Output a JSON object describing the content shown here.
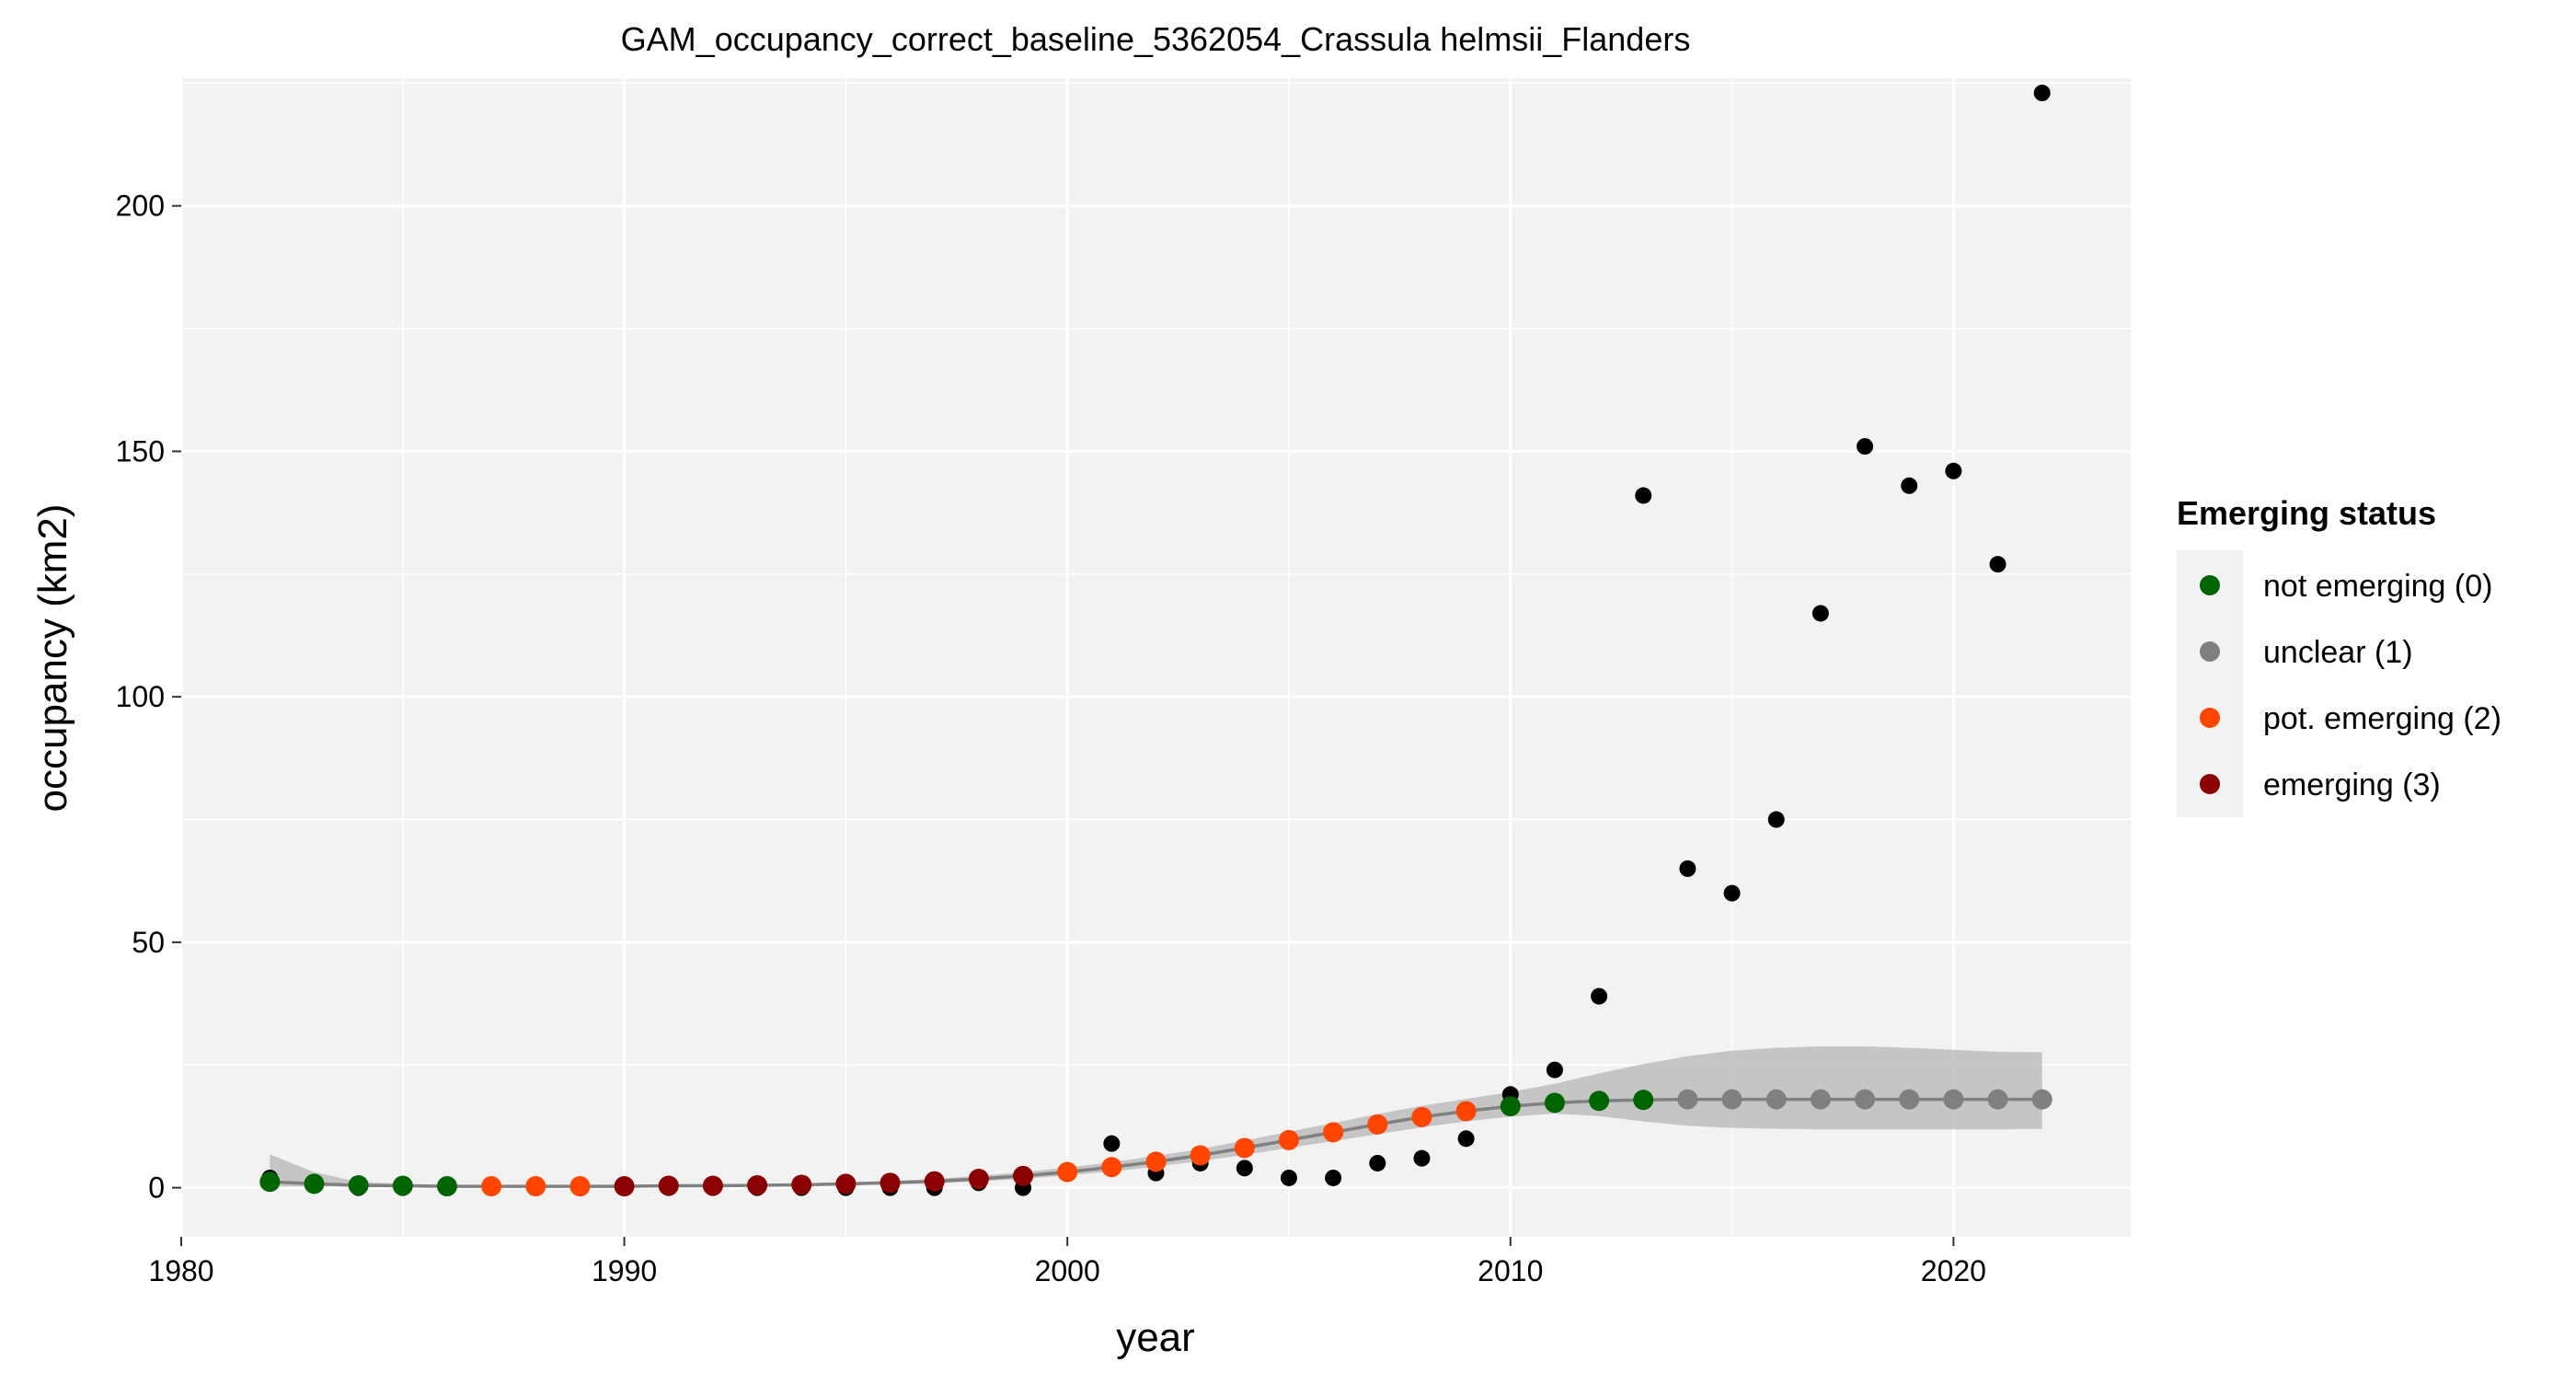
{
  "chart_data": {
    "type": "scatter",
    "title": "GAM_occupancy_correct_baseline_5362054_Crassula helmsii_Flanders",
    "xlabel": "year",
    "ylabel": "occupancy (km2)",
    "xlim": [
      1980,
      2024
    ],
    "ylim": [
      -10,
      226
    ],
    "x_ticks": [
      1980,
      1990,
      2000,
      2010,
      2020
    ],
    "y_ticks": [
      0,
      50,
      100,
      150,
      200
    ],
    "grid": true,
    "legend_position": "right",
    "legend": {
      "title": "Emerging status",
      "entries": [
        {
          "label": "not emerging (0)",
          "color": "#006400"
        },
        {
          "label": "unclear (1)",
          "color": "#808080"
        },
        {
          "label": "pot. emerging (2)",
          "color": "#FF4500"
        },
        {
          "label": "emerging (3)",
          "color": "#8B0000"
        }
      ]
    },
    "observed": {
      "color": "#000000",
      "x": [
        1982,
        1983,
        1984,
        1985,
        1986,
        1987,
        1988,
        1989,
        1990,
        1991,
        1992,
        1993,
        1994,
        1995,
        1996,
        1997,
        1998,
        1999,
        2000,
        2001,
        2002,
        2003,
        2004,
        2005,
        2006,
        2007,
        2008,
        2009,
        2010,
        2011,
        2012,
        2013,
        2014,
        2015,
        2016,
        2017,
        2018,
        2019,
        2020,
        2021,
        2022
      ],
      "y": [
        2,
        1,
        0,
        0,
        0,
        0,
        0,
        0,
        0,
        0,
        0,
        0,
        0,
        0,
        0,
        0,
        1,
        0,
        3,
        9,
        3,
        5,
        4,
        2,
        2,
        5,
        6,
        10,
        19,
        24,
        39,
        141,
        65,
        60,
        75,
        117,
        151,
        143,
        146,
        127,
        223
      ]
    },
    "fitted": {
      "line_color": "#808080",
      "ribbon_color": "#BDBDBD",
      "x": [
        1982,
        1983,
        1984,
        1985,
        1986,
        1987,
        1988,
        1989,
        1990,
        1991,
        1992,
        1993,
        1994,
        1995,
        1996,
        1997,
        1998,
        1999,
        2000,
        2001,
        2002,
        2003,
        2004,
        2005,
        2006,
        2007,
        2008,
        2009,
        2010,
        2011,
        2012,
        2013,
        2014,
        2015,
        2016,
        2017,
        2018,
        2019,
        2020,
        2021,
        2022
      ],
      "y": [
        1.2,
        0.8,
        0.5,
        0.4,
        0.3,
        0.3,
        0.3,
        0.3,
        0.3,
        0.4,
        0.4,
        0.5,
        0.6,
        0.8,
        1.0,
        1.3,
        1.8,
        2.4,
        3.2,
        4.2,
        5.3,
        6.6,
        8.1,
        9.7,
        11.3,
        12.9,
        14.4,
        15.6,
        16.6,
        17.3,
        17.7,
        17.9,
        18.0,
        18.0,
        18.0,
        18.0,
        18.0,
        18.0,
        18.0,
        18.0,
        18.0
      ],
      "lower": [
        0.2,
        0.3,
        0.2,
        0.2,
        0.1,
        0.1,
        0.1,
        0.1,
        0.1,
        0.2,
        0.2,
        0.3,
        0.4,
        0.5,
        0.7,
        0.9,
        1.3,
        1.8,
        2.5,
        3.3,
        4.3,
        5.4,
        6.7,
        8.1,
        9.5,
        10.9,
        12.3,
        13.5,
        14.5,
        15.1,
        14.6,
        13.5,
        12.6,
        12.2,
        12.0,
        11.9,
        11.9,
        11.9,
        11.9,
        11.9,
        12.0
      ],
      "upper": [
        6.8,
        3.2,
        1.2,
        0.8,
        0.6,
        0.6,
        0.6,
        0.6,
        0.6,
        0.7,
        0.7,
        0.8,
        0.9,
        1.1,
        1.4,
        1.8,
        2.4,
        3.2,
        4.1,
        5.2,
        6.5,
        7.9,
        9.6,
        11.4,
        13.2,
        15.0,
        16.7,
        18.1,
        19.5,
        21.2,
        23.3,
        25.2,
        26.8,
        27.9,
        28.5,
        28.8,
        28.8,
        28.5,
        28.1,
        27.7,
        27.6
      ]
    },
    "status_series": [
      {
        "status": "not emerging (0)",
        "x": [
          1982,
          1983,
          1984,
          1985,
          1986,
          2010,
          2011,
          2012,
          2013
        ]
      },
      {
        "status": "pot. emerging (2)",
        "x": [
          1987,
          1988,
          1989,
          2000,
          2001,
          2002,
          2003,
          2004,
          2005,
          2006,
          2007,
          2008,
          2009
        ]
      },
      {
        "status": "emerging (3)",
        "x": [
          1990,
          1991,
          1992,
          1993,
          1994,
          1995,
          1996,
          1997,
          1998,
          1999
        ]
      },
      {
        "status": "unclear (1)",
        "x": [
          2014,
          2015,
          2016,
          2017,
          2018,
          2019,
          2020,
          2021,
          2022
        ]
      }
    ]
  }
}
